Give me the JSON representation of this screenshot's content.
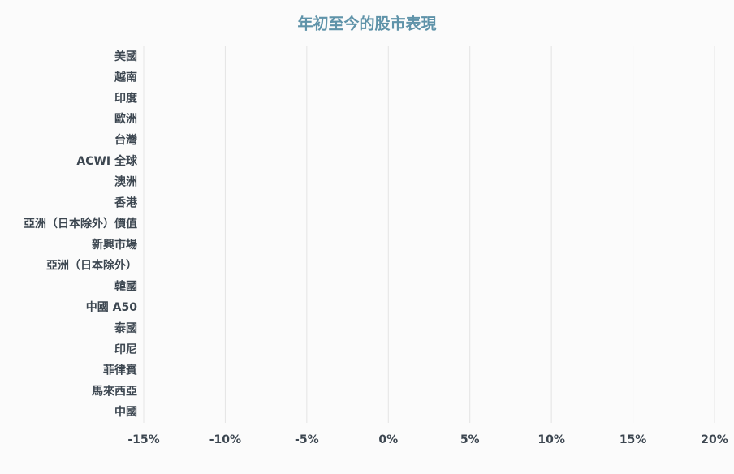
{
  "chart_data": {
    "type": "bar",
    "orientation": "horizontal",
    "title": "年初至今的股市表現",
    "categories": [
      "美國",
      "越南",
      "印度",
      "歐洲",
      "台灣",
      "ACWI 全球",
      "澳洲",
      "香港",
      "亞洲（日本除外）價值",
      "新興市場",
      "亞洲（日本除外）",
      "韓國",
      "中國 A50",
      "泰國",
      "印尼",
      "菲律賓",
      "馬來西亞",
      "中國"
    ],
    "xlim": [
      -15,
      20
    ],
    "xticks": [
      {
        "value": -15,
        "label": "-15%"
      },
      {
        "value": -10,
        "label": "-10%"
      },
      {
        "value": -5,
        "label": "-5%"
      },
      {
        "value": 0,
        "label": "0%"
      },
      {
        "value": 5,
        "label": "5%"
      },
      {
        "value": 10,
        "label": "10%"
      },
      {
        "value": 15,
        "label": "15%"
      },
      {
        "value": 20,
        "label": "20%"
      }
    ],
    "grid": true
  }
}
